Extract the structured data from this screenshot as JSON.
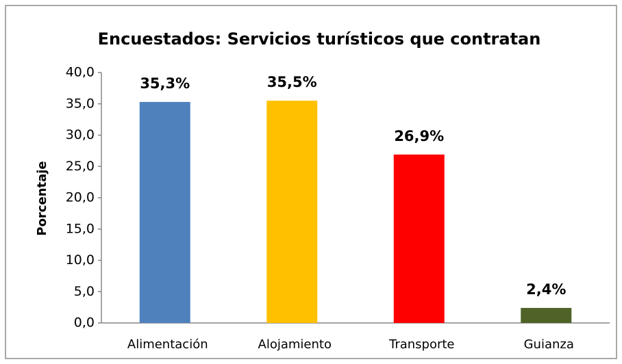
{
  "chart_data": {
    "type": "bar",
    "title": "Encuestados: Servicios turísticos que contratan",
    "ylabel": "Porcentaje",
    "categories": [
      "Alimentación",
      "Alojamiento",
      "Transporte",
      "Guianza"
    ],
    "values": [
      35.3,
      35.5,
      26.9,
      2.4
    ],
    "value_labels": [
      "35,3%",
      "35,5%",
      "26,9%",
      "2,4%"
    ],
    "colors": [
      "#4f81bd",
      "#ffc000",
      "#ff0000",
      "#4f6228"
    ],
    "ylim": [
      0,
      40
    ],
    "yticks": [
      {
        "value": 0,
        "label": "0,0"
      },
      {
        "value": 5,
        "label": "5,0"
      },
      {
        "value": 10,
        "label": "10,0"
      },
      {
        "value": 15,
        "label": "15,0"
      },
      {
        "value": 20,
        "label": "20,0"
      },
      {
        "value": 25,
        "label": "25,0"
      },
      {
        "value": 30,
        "label": "30,0"
      },
      {
        "value": 35,
        "label": "35,0"
      },
      {
        "value": 40,
        "label": "40,0"
      }
    ],
    "grid": false
  }
}
